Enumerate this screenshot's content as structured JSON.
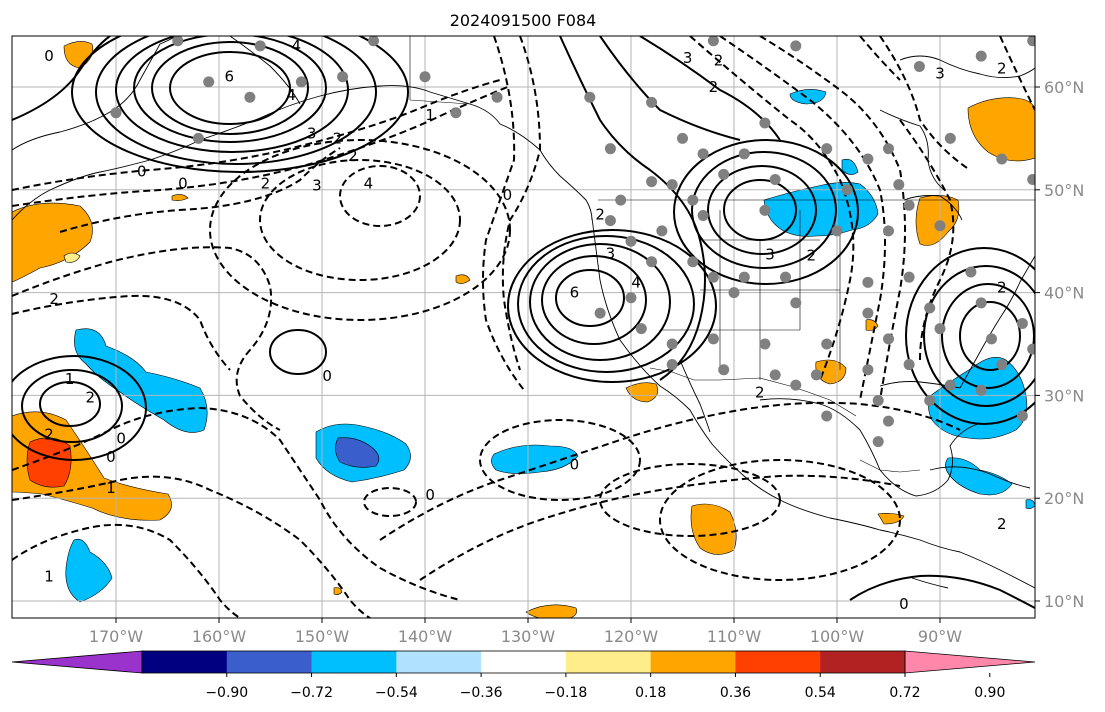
{
  "title": "2024091500 F084",
  "lon_labels": [
    "170°W",
    "160°W",
    "150°W",
    "140°W",
    "130°W",
    "120°W",
    "110°W",
    "100°W",
    "90°W"
  ],
  "lat_labels": [
    "60°N",
    "50°N",
    "40°N",
    "30°N",
    "20°N",
    "10°N"
  ],
  "colorbar": {
    "colors": [
      "#9933cc",
      "#000080",
      "#3a5fcd",
      "#00bfff",
      "#b0e2ff",
      "#ffffff",
      "#ffec8b",
      "#ffa500",
      "#ff4000",
      "#b22222",
      "#ff88aa"
    ],
    "tick_labels": [
      "−0.90",
      "−0.72",
      "−0.54",
      "−0.36",
      "−0.18",
      "0.18",
      "0.36",
      "0.54",
      "0.72",
      "0.90"
    ]
  },
  "contour_labels": [
    {
      "text": "0",
      "lon": -176.5,
      "lat": 63.0
    },
    {
      "text": "4",
      "lon": -152.5,
      "lat": 64.0
    },
    {
      "text": "6",
      "lon": -159.0,
      "lat": 61.0
    },
    {
      "text": "4",
      "lon": -153.0,
      "lat": 59.2
    },
    {
      "text": "3",
      "lon": -151.0,
      "lat": 55.5
    },
    {
      "text": "2",
      "lon": -148.5,
      "lat": 55.0
    },
    {
      "text": "1",
      "lon": -139.5,
      "lat": 57.3
    },
    {
      "text": "0",
      "lon": -167.5,
      "lat": 51.8
    },
    {
      "text": "0",
      "lon": -163.5,
      "lat": 50.6
    },
    {
      "text": "2",
      "lon": -155.5,
      "lat": 50.6
    },
    {
      "text": "3",
      "lon": -150.5,
      "lat": 50.4
    },
    {
      "text": "4",
      "lon": -145.5,
      "lat": 50.6
    },
    {
      "text": "2",
      "lon": -147.0,
      "lat": 53.3
    },
    {
      "text": "2",
      "lon": -176.0,
      "lat": 39.4
    },
    {
      "text": "0",
      "lon": -149.5,
      "lat": 31.9
    },
    {
      "text": "1",
      "lon": -174.5,
      "lat": 31.6
    },
    {
      "text": "2",
      "lon": -172.5,
      "lat": 29.8
    },
    {
      "text": "2",
      "lon": -176.5,
      "lat": 26.2
    },
    {
      "text": "0",
      "lon": -169.5,
      "lat": 25.8
    },
    {
      "text": "0",
      "lon": -170.5,
      "lat": 24.0
    },
    {
      "text": "1",
      "lon": -170.5,
      "lat": 21.0
    },
    {
      "text": "0",
      "lon": -139.5,
      "lat": 20.3
    },
    {
      "text": "0",
      "lon": -125.5,
      "lat": 23.3
    },
    {
      "text": "1",
      "lon": -176.5,
      "lat": 12.4
    },
    {
      "text": "3",
      "lon": -114.5,
      "lat": 62.8
    },
    {
      "text": "2",
      "lon": -111.5,
      "lat": 62.6
    },
    {
      "text": "0",
      "lon": -132.0,
      "lat": 49.5
    },
    {
      "text": "2",
      "lon": -123.0,
      "lat": 47.6
    },
    {
      "text": "3",
      "lon": -122.0,
      "lat": 43.8
    },
    {
      "text": "6",
      "lon": -125.5,
      "lat": 40.0
    },
    {
      "text": "4",
      "lon": -119.5,
      "lat": 41.0
    },
    {
      "text": "3",
      "lon": -106.5,
      "lat": 43.7
    },
    {
      "text": "2",
      "lon": -102.5,
      "lat": 43.6
    },
    {
      "text": "2",
      "lon": -112.0,
      "lat": 60.0
    },
    {
      "text": "2",
      "lon": -107.5,
      "lat": 30.3
    },
    {
      "text": "3",
      "lon": -90.0,
      "lat": 61.3
    },
    {
      "text": "2",
      "lon": -84.0,
      "lat": 61.8
    },
    {
      "text": "2",
      "lon": -84.0,
      "lat": 40.5
    },
    {
      "text": "2",
      "lon": -84.0,
      "lat": 17.5
    },
    {
      "text": "0",
      "lon": -93.5,
      "lat": 9.7
    }
  ],
  "stations": [
    [
      -164,
      64.5
    ],
    [
      -161,
      60.5
    ],
    [
      -156,
      64
    ],
    [
      -152,
      60.5
    ],
    [
      -148,
      61
    ],
    [
      -145,
      64.5
    ],
    [
      -140,
      61
    ],
    [
      -170,
      57.5
    ],
    [
      -157,
      59
    ],
    [
      -162,
      55
    ],
    [
      -133,
      59
    ],
    [
      -137,
      57.5
    ],
    [
      -124,
      59
    ],
    [
      -118,
      58.5
    ],
    [
      -122,
      54
    ],
    [
      -115,
      55
    ],
    [
      -113,
      53.5
    ],
    [
      -109,
      53.5
    ],
    [
      -107,
      56.5
    ],
    [
      -101,
      54
    ],
    [
      -95,
      54
    ],
    [
      -111,
      51.5
    ],
    [
      -106,
      51
    ],
    [
      -97,
      53
    ],
    [
      -99,
      50
    ],
    [
      -93,
      48.5
    ],
    [
      -118,
      50.8
    ],
    [
      -116,
      50.5
    ],
    [
      -121,
      49
    ],
    [
      -114,
      49
    ],
    [
      -113,
      47.5
    ],
    [
      -122,
      47
    ],
    [
      -117,
      46
    ],
    [
      -107,
      48
    ],
    [
      -100,
      46
    ],
    [
      -95,
      46
    ],
    [
      -90,
      46.5
    ],
    [
      -120,
      45
    ],
    [
      -118,
      43
    ],
    [
      -114,
      43
    ],
    [
      -112,
      41.5
    ],
    [
      -109,
      41.5
    ],
    [
      -105,
      41.5
    ],
    [
      -97,
      41
    ],
    [
      -93,
      41.5
    ],
    [
      -87,
      42
    ],
    [
      -120,
      39.5
    ],
    [
      -110,
      40
    ],
    [
      -104,
      39
    ],
    [
      -97,
      38
    ],
    [
      -91,
      38.5
    ],
    [
      -86,
      39
    ],
    [
      -123,
      38
    ],
    [
      -112,
      35.5
    ],
    [
      -107,
      35
    ],
    [
      -101,
      35
    ],
    [
      -95,
      35.5
    ],
    [
      -90,
      36.5
    ],
    [
      -85,
      35.5
    ],
    [
      -82,
      37
    ],
    [
      -119,
      36.5
    ],
    [
      -116,
      33
    ],
    [
      -111,
      32.5
    ],
    [
      -106,
      32
    ],
    [
      -102,
      32
    ],
    [
      -97,
      32.5
    ],
    [
      -93,
      33
    ],
    [
      -89,
      31
    ],
    [
      -84,
      33
    ],
    [
      -81,
      34.5
    ],
    [
      -104,
      31
    ],
    [
      -96,
      29.5
    ],
    [
      -91,
      29.5
    ],
    [
      -86,
      30.5
    ],
    [
      -82,
      28
    ],
    [
      -101,
      28
    ],
    [
      -95,
      27.5
    ],
    [
      -96,
      25.5
    ],
    [
      -80,
      26
    ],
    [
      -80,
      24.5
    ],
    [
      -79,
      19.5
    ],
    [
      -92,
      62
    ],
    [
      -86,
      63
    ],
    [
      -81,
      64.5
    ],
    [
      -89,
      55
    ],
    [
      -84,
      53
    ],
    [
      -81,
      51
    ],
    [
      -77,
      49
    ],
    [
      -94,
      50.5
    ],
    [
      -112,
      64.5
    ],
    [
      -104,
      64
    ],
    [
      -116,
      35
    ]
  ]
}
